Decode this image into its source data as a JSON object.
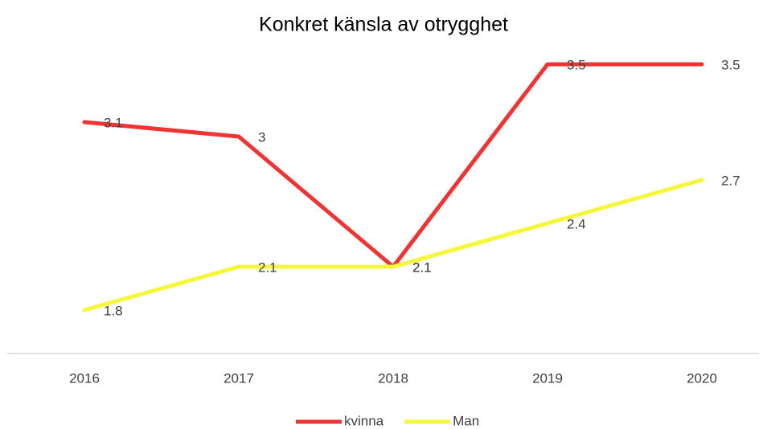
{
  "chart_data": {
    "type": "line",
    "title": "Konkret känsla av otrygghet",
    "categories": [
      "2016",
      "2017",
      "2018",
      "2019",
      "2020"
    ],
    "series": [
      {
        "name": "kvinna",
        "color": "#ef3434",
        "values": [
          3.1,
          3,
          2.1,
          3.5,
          3.5
        ]
      },
      {
        "name": "Man",
        "color": "#f7f73a",
        "values": [
          1.8,
          2.1,
          2.1,
          2.4,
          2.7
        ]
      }
    ],
    "ylim": [
      1.5,
      3.5
    ],
    "legend": "bottom"
  }
}
